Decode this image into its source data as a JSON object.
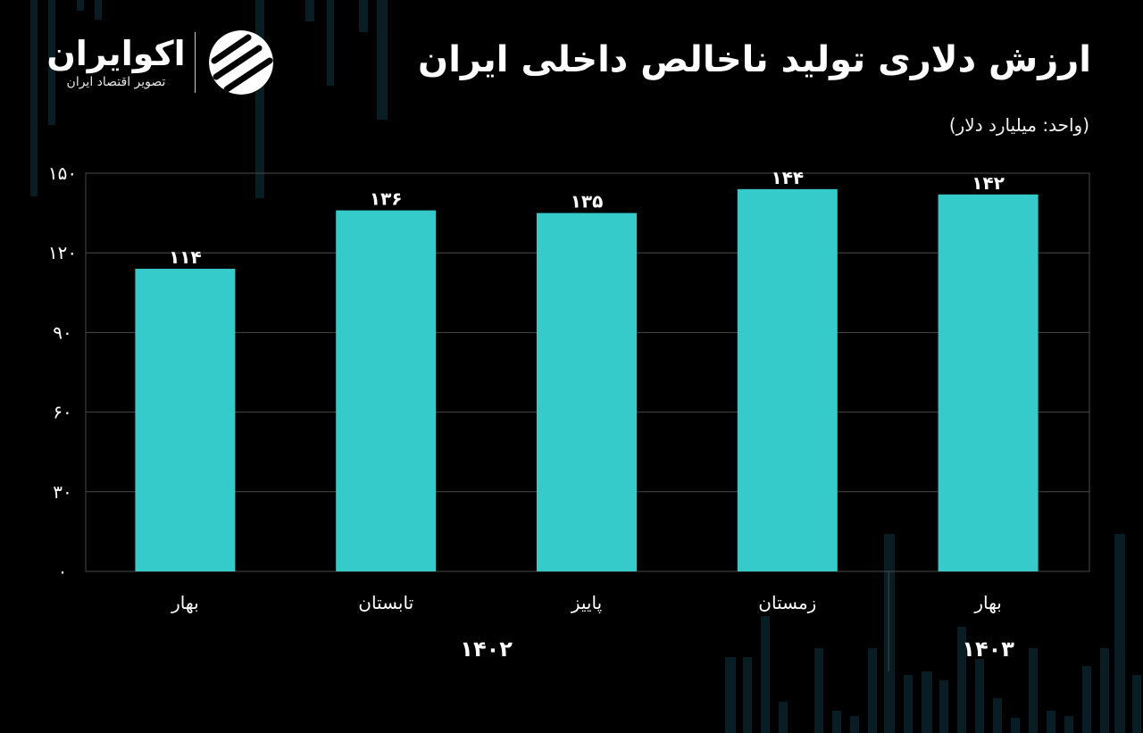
{
  "header": {
    "title": "ارزش دلاری تولید ناخالص داخلی ایران",
    "unit_note": "(واحد: میلیارد دلار)"
  },
  "logo": {
    "name": "اکوایران",
    "tagline": "تصویر اقتصاد ایران"
  },
  "colors": {
    "background": "#000000",
    "bar": "#36cbcb",
    "grid": "#4a4a4a",
    "text": "#ffffff"
  },
  "chart_data": {
    "type": "bar",
    "title": "ارزش دلاری تولید ناخالص داخلی ایران",
    "ylabel": "",
    "xlabel": "",
    "ylim": [
      0,
      150
    ],
    "yticks": [
      0,
      30,
      60,
      90,
      120,
      150
    ],
    "ytick_labels": [
      "۰",
      "۳۰",
      "۶۰",
      "۹۰",
      "۱۲۰",
      "۱۵۰"
    ],
    "grid": true,
    "categories": [
      "بهار",
      "تابستان",
      "پاییز",
      "زمستان",
      "بهار"
    ],
    "values": [
      114,
      136,
      135,
      144,
      142
    ],
    "value_labels": [
      "۱۱۴",
      "۱۳۶",
      "۱۳۵",
      "۱۴۴",
      "۱۴۲"
    ],
    "groups": [
      {
        "label": "۱۴۰۲",
        "categories": [
          0,
          1,
          2,
          3
        ]
      },
      {
        "label": "۱۴۰۳",
        "categories": [
          4
        ]
      }
    ]
  }
}
